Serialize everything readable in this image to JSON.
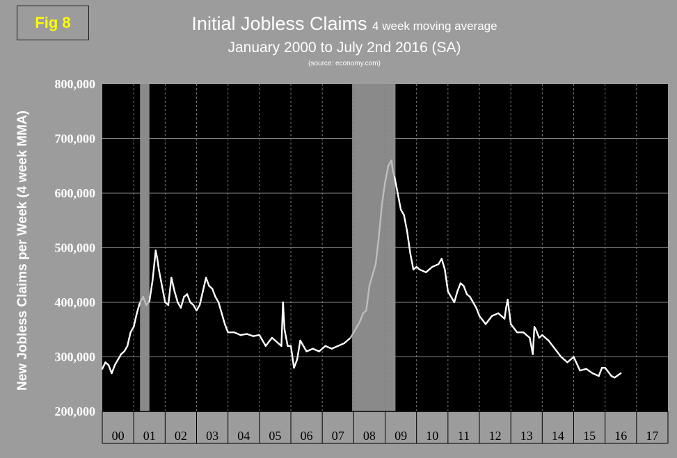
{
  "badge": "Fig 8",
  "title": {
    "main": "Initial Jobless Claims",
    "suffix": "4 week moving average",
    "subtitle": "January 2000 to July 2nd 2016 (SA)",
    "source": "(source: economy.com)"
  },
  "colors": {
    "background": "#9c9c9c",
    "plot_area": "#000000",
    "recession": "#8a8a8a",
    "line": "#ffffff",
    "line_recession": "#bdbdbd",
    "badge_text": "#ffff00",
    "grid": "#8c8c8c"
  },
  "chart_data": {
    "type": "line",
    "ylabel": "New Jobless Claims per Week (4 week MMA)",
    "ylim": [
      200000,
      800000
    ],
    "yticks": [
      200000,
      300000,
      400000,
      500000,
      600000,
      700000,
      800000
    ],
    "ytick_labels": [
      "200,000",
      "300,000",
      "400,000",
      "500,000",
      "600,000",
      "700,000",
      "800,000"
    ],
    "xlim": [
      2000,
      2018
    ],
    "x_categories": [
      "00",
      "01",
      "02",
      "03",
      "04",
      "05",
      "06",
      "07",
      "08",
      "09",
      "10",
      "11",
      "12",
      "13",
      "14",
      "15",
      "16",
      "17"
    ],
    "grid": "horizontal solid, vertical dashed",
    "recessions": [
      {
        "start": 2001.2,
        "end": 2001.5
      },
      {
        "start": 2007.95,
        "end": 2009.33
      }
    ],
    "series": [
      {
        "x": [
          2000.0,
          2000.1,
          2000.2,
          2000.3,
          2000.4,
          2000.5,
          2000.6,
          2000.7,
          2000.8,
          2000.9,
          2001.0,
          2001.1,
          2001.2,
          2001.3,
          2001.4,
          2001.5,
          2001.6,
          2001.7,
          2001.75,
          2001.8,
          2001.9,
          2002.0,
          2002.1,
          2002.2,
          2002.3,
          2002.4,
          2002.5,
          2002.6,
          2002.7,
          2002.8,
          2002.9,
          2003.0,
          2003.1,
          2003.2,
          2003.3,
          2003.4,
          2003.5,
          2003.6,
          2003.7,
          2003.8,
          2003.9,
          2004.0,
          2004.2,
          2004.4,
          2004.6,
          2004.8,
          2005.0,
          2005.2,
          2005.4,
          2005.6,
          2005.7,
          2005.75,
          2005.8,
          2005.9,
          2006.0,
          2006.1,
          2006.2,
          2006.3,
          2006.5,
          2006.7,
          2006.9,
          2007.1,
          2007.3,
          2007.5,
          2007.7,
          2007.9,
          2008.0,
          2008.1,
          2008.2,
          2008.3,
          2008.4,
          2008.5,
          2008.6,
          2008.7,
          2008.8,
          2008.9,
          2009.0,
          2009.1,
          2009.2,
          2009.25,
          2009.3,
          2009.4,
          2009.5,
          2009.6,
          2009.7,
          2009.8,
          2009.9,
          2010.0,
          2010.1,
          2010.3,
          2010.5,
          2010.7,
          2010.8,
          2010.9,
          2011.0,
          2011.1,
          2011.2,
          2011.3,
          2011.4,
          2011.5,
          2011.6,
          2011.7,
          2011.8,
          2011.9,
          2012.0,
          2012.2,
          2012.4,
          2012.6,
          2012.8,
          2012.85,
          2012.9,
          2013.0,
          2013.2,
          2013.4,
          2013.6,
          2013.7,
          2013.75,
          2013.8,
          2013.9,
          2014.0,
          2014.2,
          2014.4,
          2014.6,
          2014.8,
          2015.0,
          2015.2,
          2015.4,
          2015.6,
          2015.8,
          2015.9,
          2016.0,
          2016.2,
          2016.3,
          2016.5
        ],
        "y": [
          278000,
          290000,
          285000,
          270000,
          285000,
          295000,
          305000,
          310000,
          320000,
          345000,
          355000,
          380000,
          400000,
          410000,
          395000,
          402000,
          440000,
          495000,
          480000,
          460000,
          430000,
          400000,
          395000,
          445000,
          420000,
          400000,
          390000,
          410000,
          415000,
          400000,
          395000,
          385000,
          395000,
          420000,
          445000,
          430000,
          425000,
          410000,
          400000,
          380000,
          360000,
          345000,
          345000,
          340000,
          342000,
          338000,
          340000,
          320000,
          335000,
          325000,
          320000,
          400000,
          350000,
          320000,
          320000,
          280000,
          295000,
          330000,
          310000,
          315000,
          310000,
          320000,
          315000,
          320000,
          325000,
          335000,
          345000,
          355000,
          365000,
          380000,
          385000,
          430000,
          450000,
          470000,
          520000,
          580000,
          620000,
          650000,
          660000,
          640000,
          630000,
          600000,
          570000,
          560000,
          530000,
          490000,
          460000,
          465000,
          460000,
          455000,
          465000,
          470000,
          480000,
          460000,
          420000,
          410000,
          400000,
          420000,
          435000,
          430000,
          415000,
          410000,
          400000,
          390000,
          375000,
          360000,
          375000,
          380000,
          370000,
          390000,
          405000,
          360000,
          345000,
          345000,
          335000,
          305000,
          355000,
          350000,
          335000,
          340000,
          330000,
          315000,
          300000,
          290000,
          300000,
          275000,
          278000,
          270000,
          265000,
          280000,
          280000,
          265000,
          262000,
          270000
        ]
      }
    ]
  }
}
